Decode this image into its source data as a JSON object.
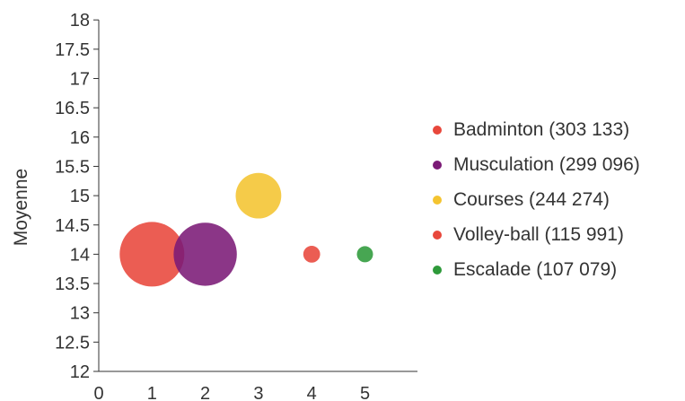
{
  "chart_data": {
    "type": "scatter",
    "ylabel": "Moyenne",
    "xlim": [
      0,
      6
    ],
    "ylim": [
      12,
      18
    ],
    "x_ticks": [
      "0",
      "1",
      "2",
      "3",
      "4",
      "5"
    ],
    "y_ticks": [
      "12",
      "12.5",
      "13",
      "13.5",
      "14",
      "14.5",
      "15",
      "15.5",
      "16",
      "16.5",
      "17",
      "17.5",
      "18"
    ],
    "grid": false,
    "legend_position": "right",
    "points": [
      {
        "label": "Badminton (303 133)",
        "x": 1,
        "y": 14,
        "size": 303133,
        "color": "#e8473b"
      },
      {
        "label": "Musculation (299 096)",
        "x": 2,
        "y": 14,
        "size": 299096,
        "color": "#7b1a76"
      },
      {
        "label": "Courses (244 274)",
        "x": 3,
        "y": 15,
        "size": 244274,
        "color": "#f4c430"
      },
      {
        "label": "Volley-ball (115 991)",
        "x": 4,
        "y": 14,
        "size": 115991,
        "color": "#e8473b"
      },
      {
        "label": "Escalade (107 079)",
        "x": 5,
        "y": 14,
        "size": 107079,
        "color": "#2e9a3a"
      }
    ]
  }
}
